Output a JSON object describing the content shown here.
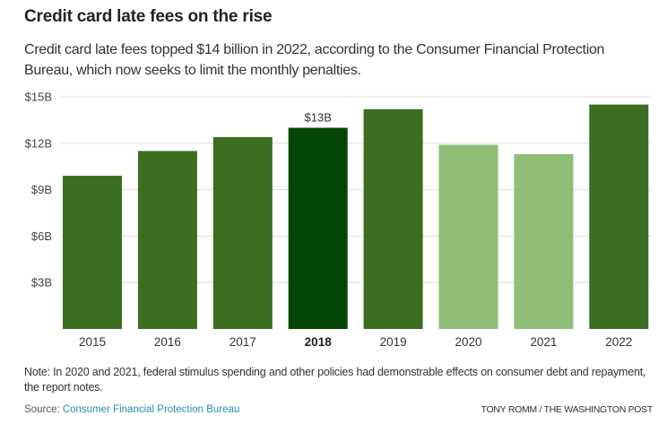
{
  "header": {
    "title": "Credit card late fees on the rise",
    "subtitle": "Credit card late fees topped $14 billion in 2022, according to the Consumer Financial Protection Bureau, which now seeks to limit the monthly penalties."
  },
  "colors": {
    "regular": "#3c6e21",
    "highlight": "#034503",
    "muted": "#8fbf77",
    "grid": "#dddddd"
  },
  "chart_data": {
    "type": "bar",
    "title": "Credit card late fees on the rise",
    "xlabel": "",
    "ylabel": "",
    "categories": [
      "2015",
      "2016",
      "2017",
      "2018",
      "2019",
      "2020",
      "2021",
      "2022"
    ],
    "values": [
      9.9,
      11.5,
      12.4,
      13.0,
      14.2,
      11.9,
      11.3,
      14.5
    ],
    "units": "billion USD",
    "bar_styles": [
      "regular",
      "regular",
      "regular",
      "highlight",
      "regular",
      "muted",
      "muted",
      "regular"
    ],
    "highlight_category": "2018",
    "annotations": [
      {
        "category": "2018",
        "text": "$13B"
      }
    ],
    "ylim": [
      0,
      15
    ],
    "yticks": [
      3,
      6,
      9,
      12,
      15
    ],
    "ytick_labels": [
      "$3B",
      "$6B",
      "$9B",
      "$12B",
      "$15B"
    ],
    "grid": true,
    "legend": "none"
  },
  "footer": {
    "note": "Note: In 2020 and 2021, federal stimulus spending and other policies had demonstrable effects on consumer debt and repayment, the report notes.",
    "source_prefix": "Source: ",
    "source_link": "Consumer Financial Protection Bureau",
    "credit": "TONY ROMM / THE WASHINGTON POST"
  }
}
